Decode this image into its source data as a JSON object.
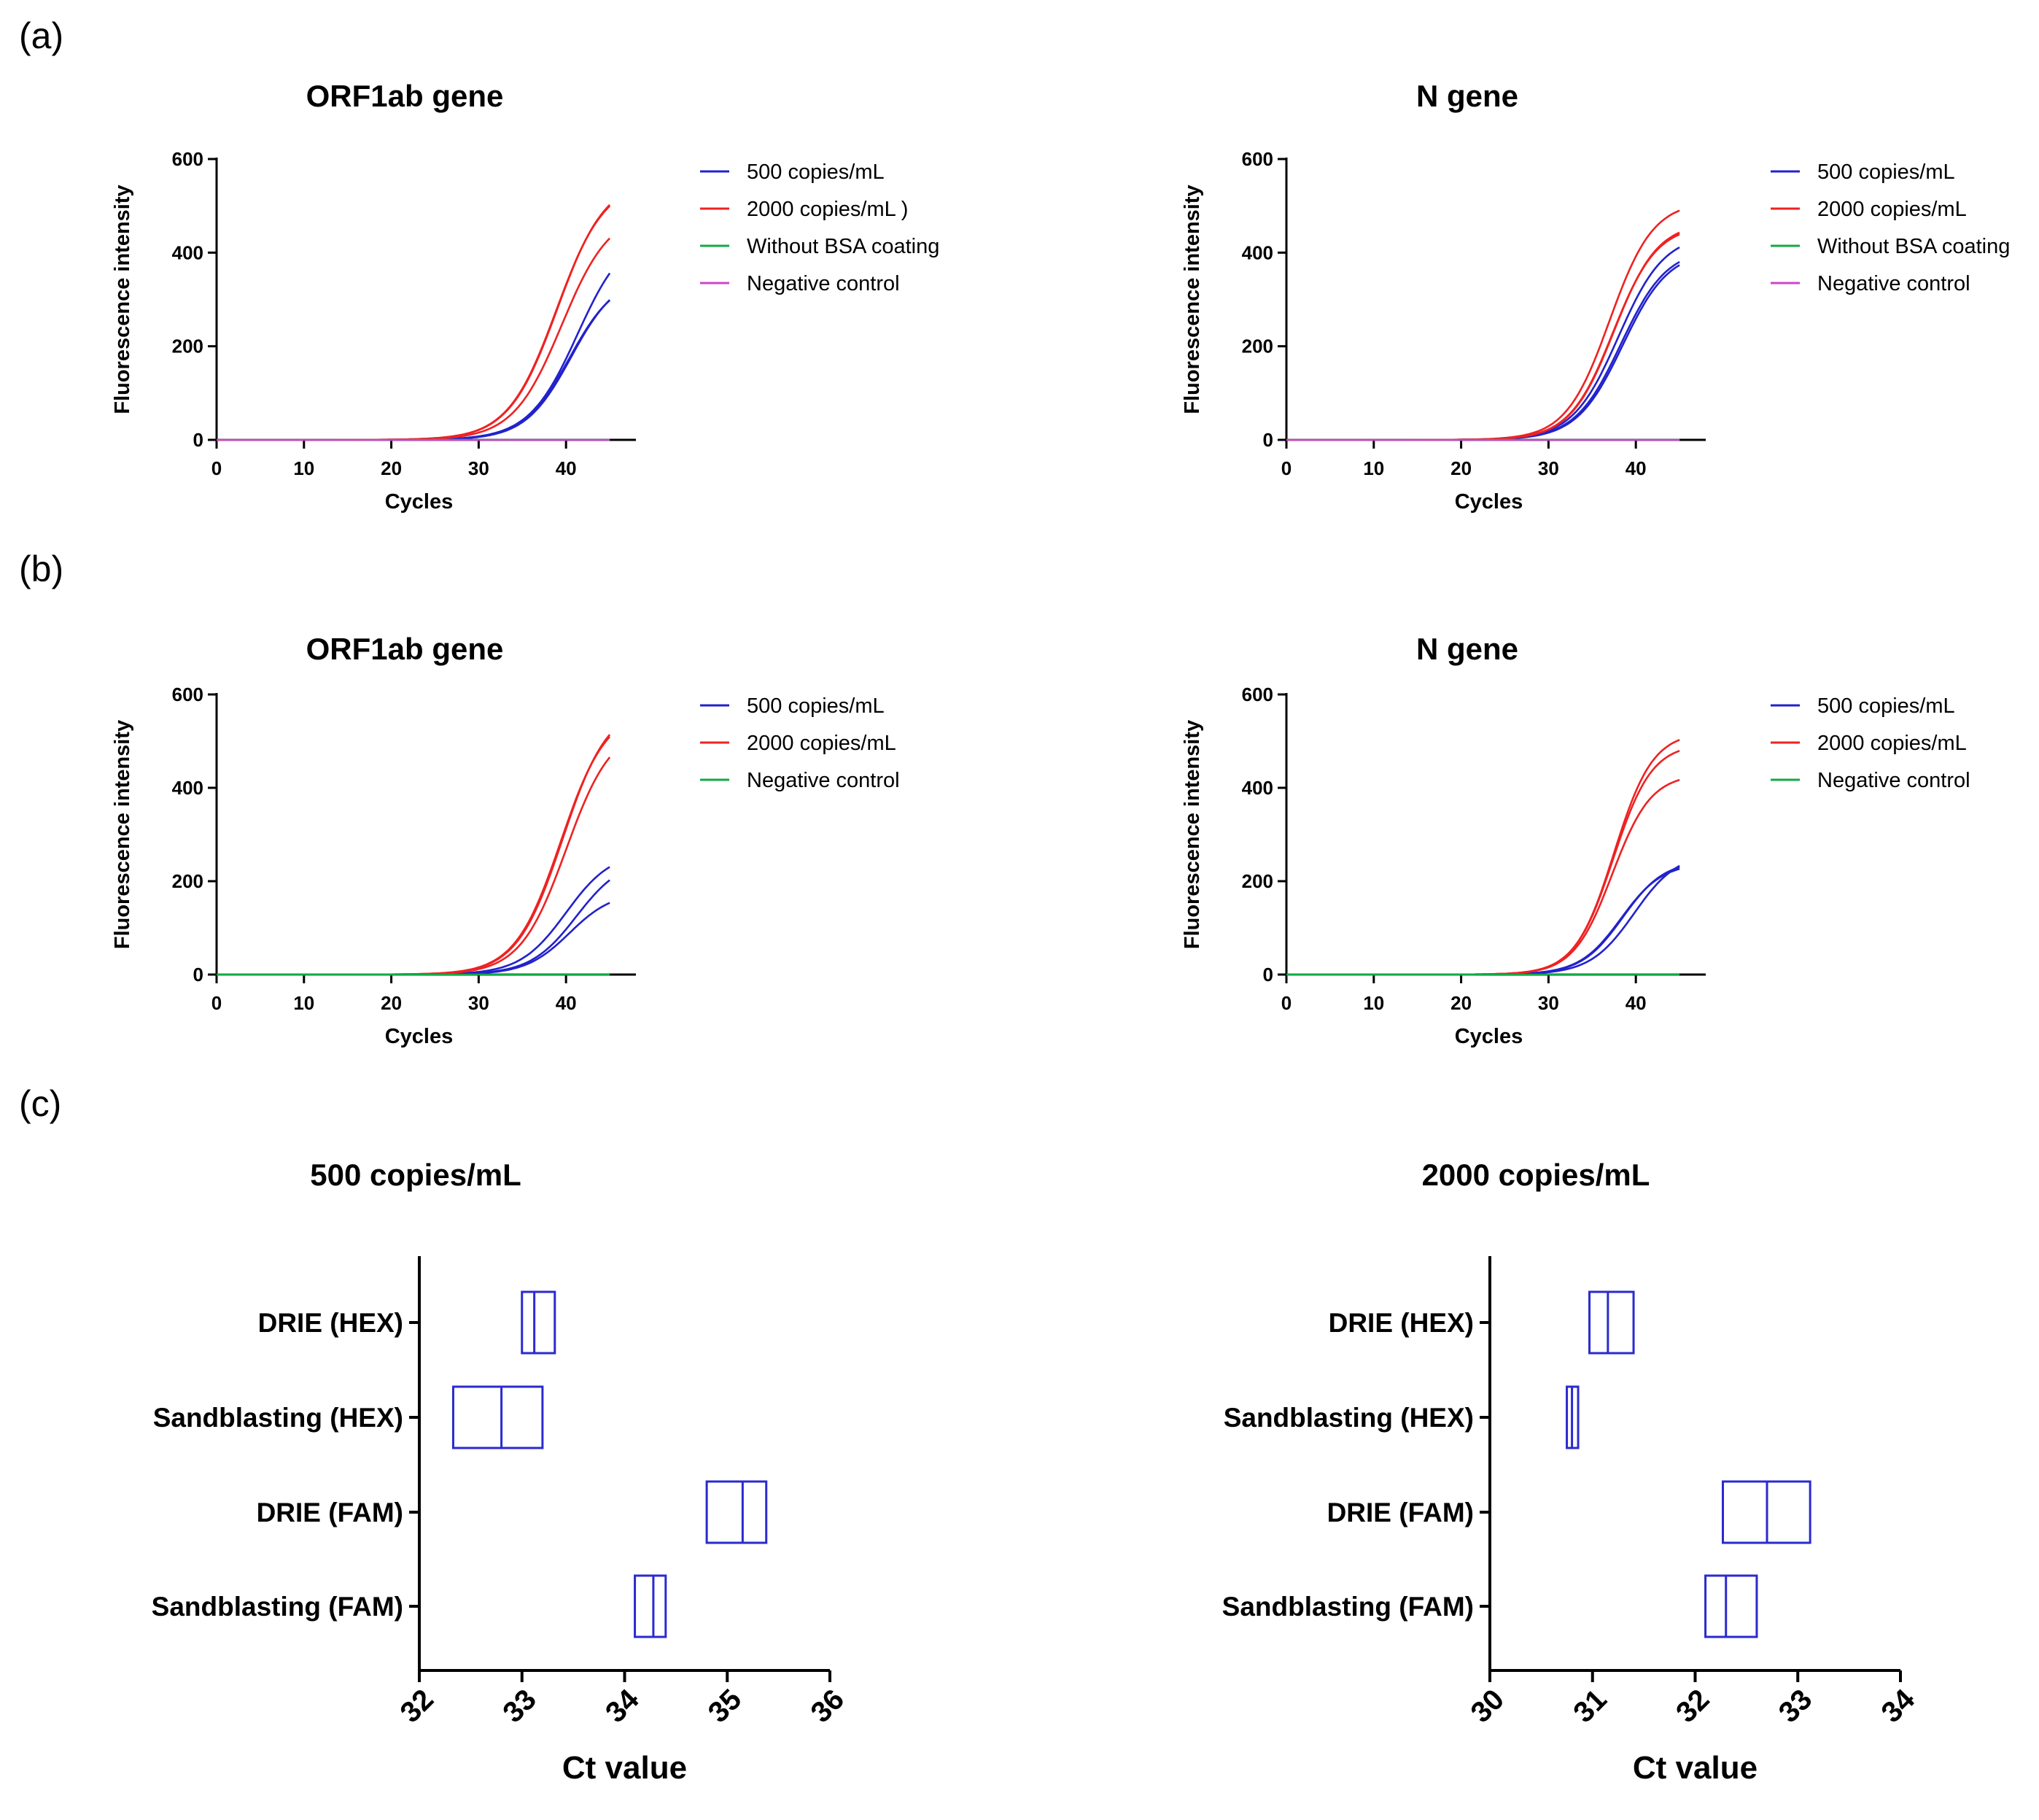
{
  "panels": [
    {
      "id": "a",
      "label": "(a)"
    },
    {
      "id": "b",
      "label": "(b)"
    },
    {
      "id": "c",
      "label": "(c)"
    }
  ],
  "colors": {
    "blue": "#2222cc",
    "red": "#ee2222",
    "green": "#11aa44",
    "magenta": "#cc44cc",
    "box": "#2a2ad0"
  },
  "chart_data": [
    {
      "id": "a1",
      "type": "line",
      "panel": "a",
      "title": "ORF1ab gene",
      "xlabel": "Cycles",
      "ylabel": "Fluorescence intensity",
      "xlim": [
        0,
        48
      ],
      "ylim": [
        0,
        600
      ],
      "xticks": [
        0,
        10,
        20,
        30,
        40
      ],
      "yticks": [
        0,
        200,
        400,
        600
      ],
      "legend_position": "right",
      "series": [
        {
          "name": "500 copies/mL",
          "color": "#2222cc",
          "curves": [
            {
              "max": 355,
              "mid": 40.6,
              "k": 0.38
            },
            {
              "max": 350,
              "mid": 40.4,
              "k": 0.38
            },
            {
              "max": 450,
              "mid": 41.3,
              "k": 0.36
            }
          ]
        },
        {
          "name": "2000 copies/mL )",
          "color": "#ee2222",
          "curves": [
            {
              "max": 560,
              "mid": 39.0,
              "k": 0.36
            },
            {
              "max": 555,
              "mid": 38.9,
              "k": 0.36
            },
            {
              "max": 490,
              "mid": 39.5,
              "k": 0.36
            }
          ]
        },
        {
          "name": "Without BSA coating",
          "color": "#11aa44",
          "curves": [
            {
              "max": 0,
              "mid": 40,
              "k": 0.3
            }
          ]
        },
        {
          "name": "Negative control",
          "color": "#cc44cc",
          "curves": [
            {
              "max": 0,
              "mid": 40,
              "k": 0.3
            }
          ]
        }
      ]
    },
    {
      "id": "a2",
      "type": "line",
      "panel": "a",
      "title": "N gene",
      "xlabel": "Cycles",
      "ylabel": "Fluorescence intensity",
      "xlim": [
        0,
        48
      ],
      "ylim": [
        0,
        600
      ],
      "xticks": [
        0,
        10,
        20,
        30,
        40
      ],
      "yticks": [
        0,
        200,
        400,
        600
      ],
      "legend_position": "right",
      "series": [
        {
          "name": "500 copies/mL",
          "color": "#2222cc",
          "curves": [
            {
              "max": 405,
              "mid": 38.5,
              "k": 0.38
            },
            {
              "max": 410,
              "mid": 38.3,
              "k": 0.38
            },
            {
              "max": 440,
              "mid": 38.0,
              "k": 0.38
            }
          ]
        },
        {
          "name": "2000 copies/mL",
          "color": "#ee2222",
          "curves": [
            {
              "max": 510,
              "mid": 37.0,
              "k": 0.4
            },
            {
              "max": 460,
              "mid": 37.4,
              "k": 0.4
            },
            {
              "max": 465,
              "mid": 37.5,
              "k": 0.4
            }
          ]
        },
        {
          "name": "Without BSA coating",
          "color": "#11aa44",
          "curves": [
            {
              "max": 0,
              "mid": 40,
              "k": 0.3
            }
          ]
        },
        {
          "name": "Negative control",
          "color": "#cc44cc",
          "curves": [
            {
              "max": 0,
              "mid": 40,
              "k": 0.3
            }
          ]
        }
      ]
    },
    {
      "id": "b1",
      "type": "line",
      "panel": "b",
      "title": "ORF1ab gene",
      "xlabel": "Cycles",
      "ylabel": "Fluorescence intensity",
      "xlim": [
        0,
        48
      ],
      "ylim": [
        0,
        600
      ],
      "xticks": [
        0,
        10,
        20,
        30,
        40
      ],
      "yticks": [
        0,
        200,
        400,
        600
      ],
      "legend_position": "right",
      "series": [
        {
          "name": "500 copies/mL",
          "color": "#2222cc",
          "curves": [
            {
              "max": 265,
              "mid": 40.0,
              "k": 0.38
            },
            {
              "max": 250,
              "mid": 41.2,
              "k": 0.38
            },
            {
              "max": 178,
              "mid": 40.4,
              "k": 0.4
            }
          ]
        },
        {
          "name": "2000 copies/mL",
          "color": "#ee2222",
          "curves": [
            {
              "max": 580,
              "mid": 39.6,
              "k": 0.38
            },
            {
              "max": 570,
              "mid": 39.4,
              "k": 0.38
            },
            {
              "max": 535,
              "mid": 40.0,
              "k": 0.38
            }
          ]
        },
        {
          "name": "Negative control",
          "color": "#11aa44",
          "curves": [
            {
              "max": 0,
              "mid": 40,
              "k": 0.3
            }
          ]
        }
      ]
    },
    {
      "id": "b2",
      "type": "line",
      "panel": "b",
      "title": "N gene",
      "xlabel": "Cycles",
      "ylabel": "Fluorescence intensity",
      "xlim": [
        0,
        48
      ],
      "ylim": [
        0,
        600
      ],
      "xticks": [
        0,
        10,
        20,
        30,
        40
      ],
      "yticks": [
        0,
        200,
        400,
        600
      ],
      "legend_position": "right",
      "series": [
        {
          "name": "500 copies/mL",
          "color": "#2222cc",
          "curves": [
            {
              "max": 240,
              "mid": 38.3,
              "k": 0.42
            },
            {
              "max": 245,
              "mid": 38.5,
              "k": 0.42
            },
            {
              "max": 262,
              "mid": 39.8,
              "k": 0.4
            }
          ]
        },
        {
          "name": "2000 copies/mL",
          "color": "#ee2222",
          "curves": [
            {
              "max": 520,
              "mid": 37.5,
              "k": 0.45
            },
            {
              "max": 495,
              "mid": 37.4,
              "k": 0.45
            },
            {
              "max": 430,
              "mid": 37.3,
              "k": 0.45
            }
          ]
        },
        {
          "name": "Negative control",
          "color": "#11aa44",
          "curves": [
            {
              "max": 0,
              "mid": 40,
              "k": 0.3
            }
          ]
        }
      ]
    },
    {
      "id": "c1",
      "type": "box",
      "panel": "c",
      "title": "500 copies/mL",
      "xlabel": "Ct value",
      "ylabel": "",
      "xlim": [
        32,
        36
      ],
      "xticks": [
        32,
        33,
        34,
        35,
        36
      ],
      "categories": [
        "DRIE (HEX)",
        "Sandblasting (HEX)",
        "DRIE (FAM)",
        "Sandblasting (FAM)"
      ],
      "boxes": [
        {
          "q1": 33.0,
          "median": 33.12,
          "q3": 33.32
        },
        {
          "q1": 32.33,
          "median": 32.8,
          "q3": 33.2
        },
        {
          "q1": 34.8,
          "median": 35.15,
          "q3": 35.38
        },
        {
          "q1": 34.1,
          "median": 34.28,
          "q3": 34.4
        }
      ]
    },
    {
      "id": "c2",
      "type": "box",
      "panel": "c",
      "title": "2000 copies/mL",
      "xlabel": "Ct value",
      "ylabel": "",
      "xlim": [
        30,
        34
      ],
      "xticks": [
        30,
        31,
        32,
        33,
        34
      ],
      "categories": [
        "DRIE (HEX)",
        "Sandblasting (HEX)",
        "DRIE (FAM)",
        "Sandblasting (FAM)"
      ],
      "boxes": [
        {
          "q1": 30.97,
          "median": 31.15,
          "q3": 31.4
        },
        {
          "q1": 30.75,
          "median": 30.8,
          "q3": 30.86
        },
        {
          "q1": 32.27,
          "median": 32.7,
          "q3": 33.12
        },
        {
          "q1": 32.1,
          "median": 32.3,
          "q3": 32.6
        }
      ]
    }
  ]
}
